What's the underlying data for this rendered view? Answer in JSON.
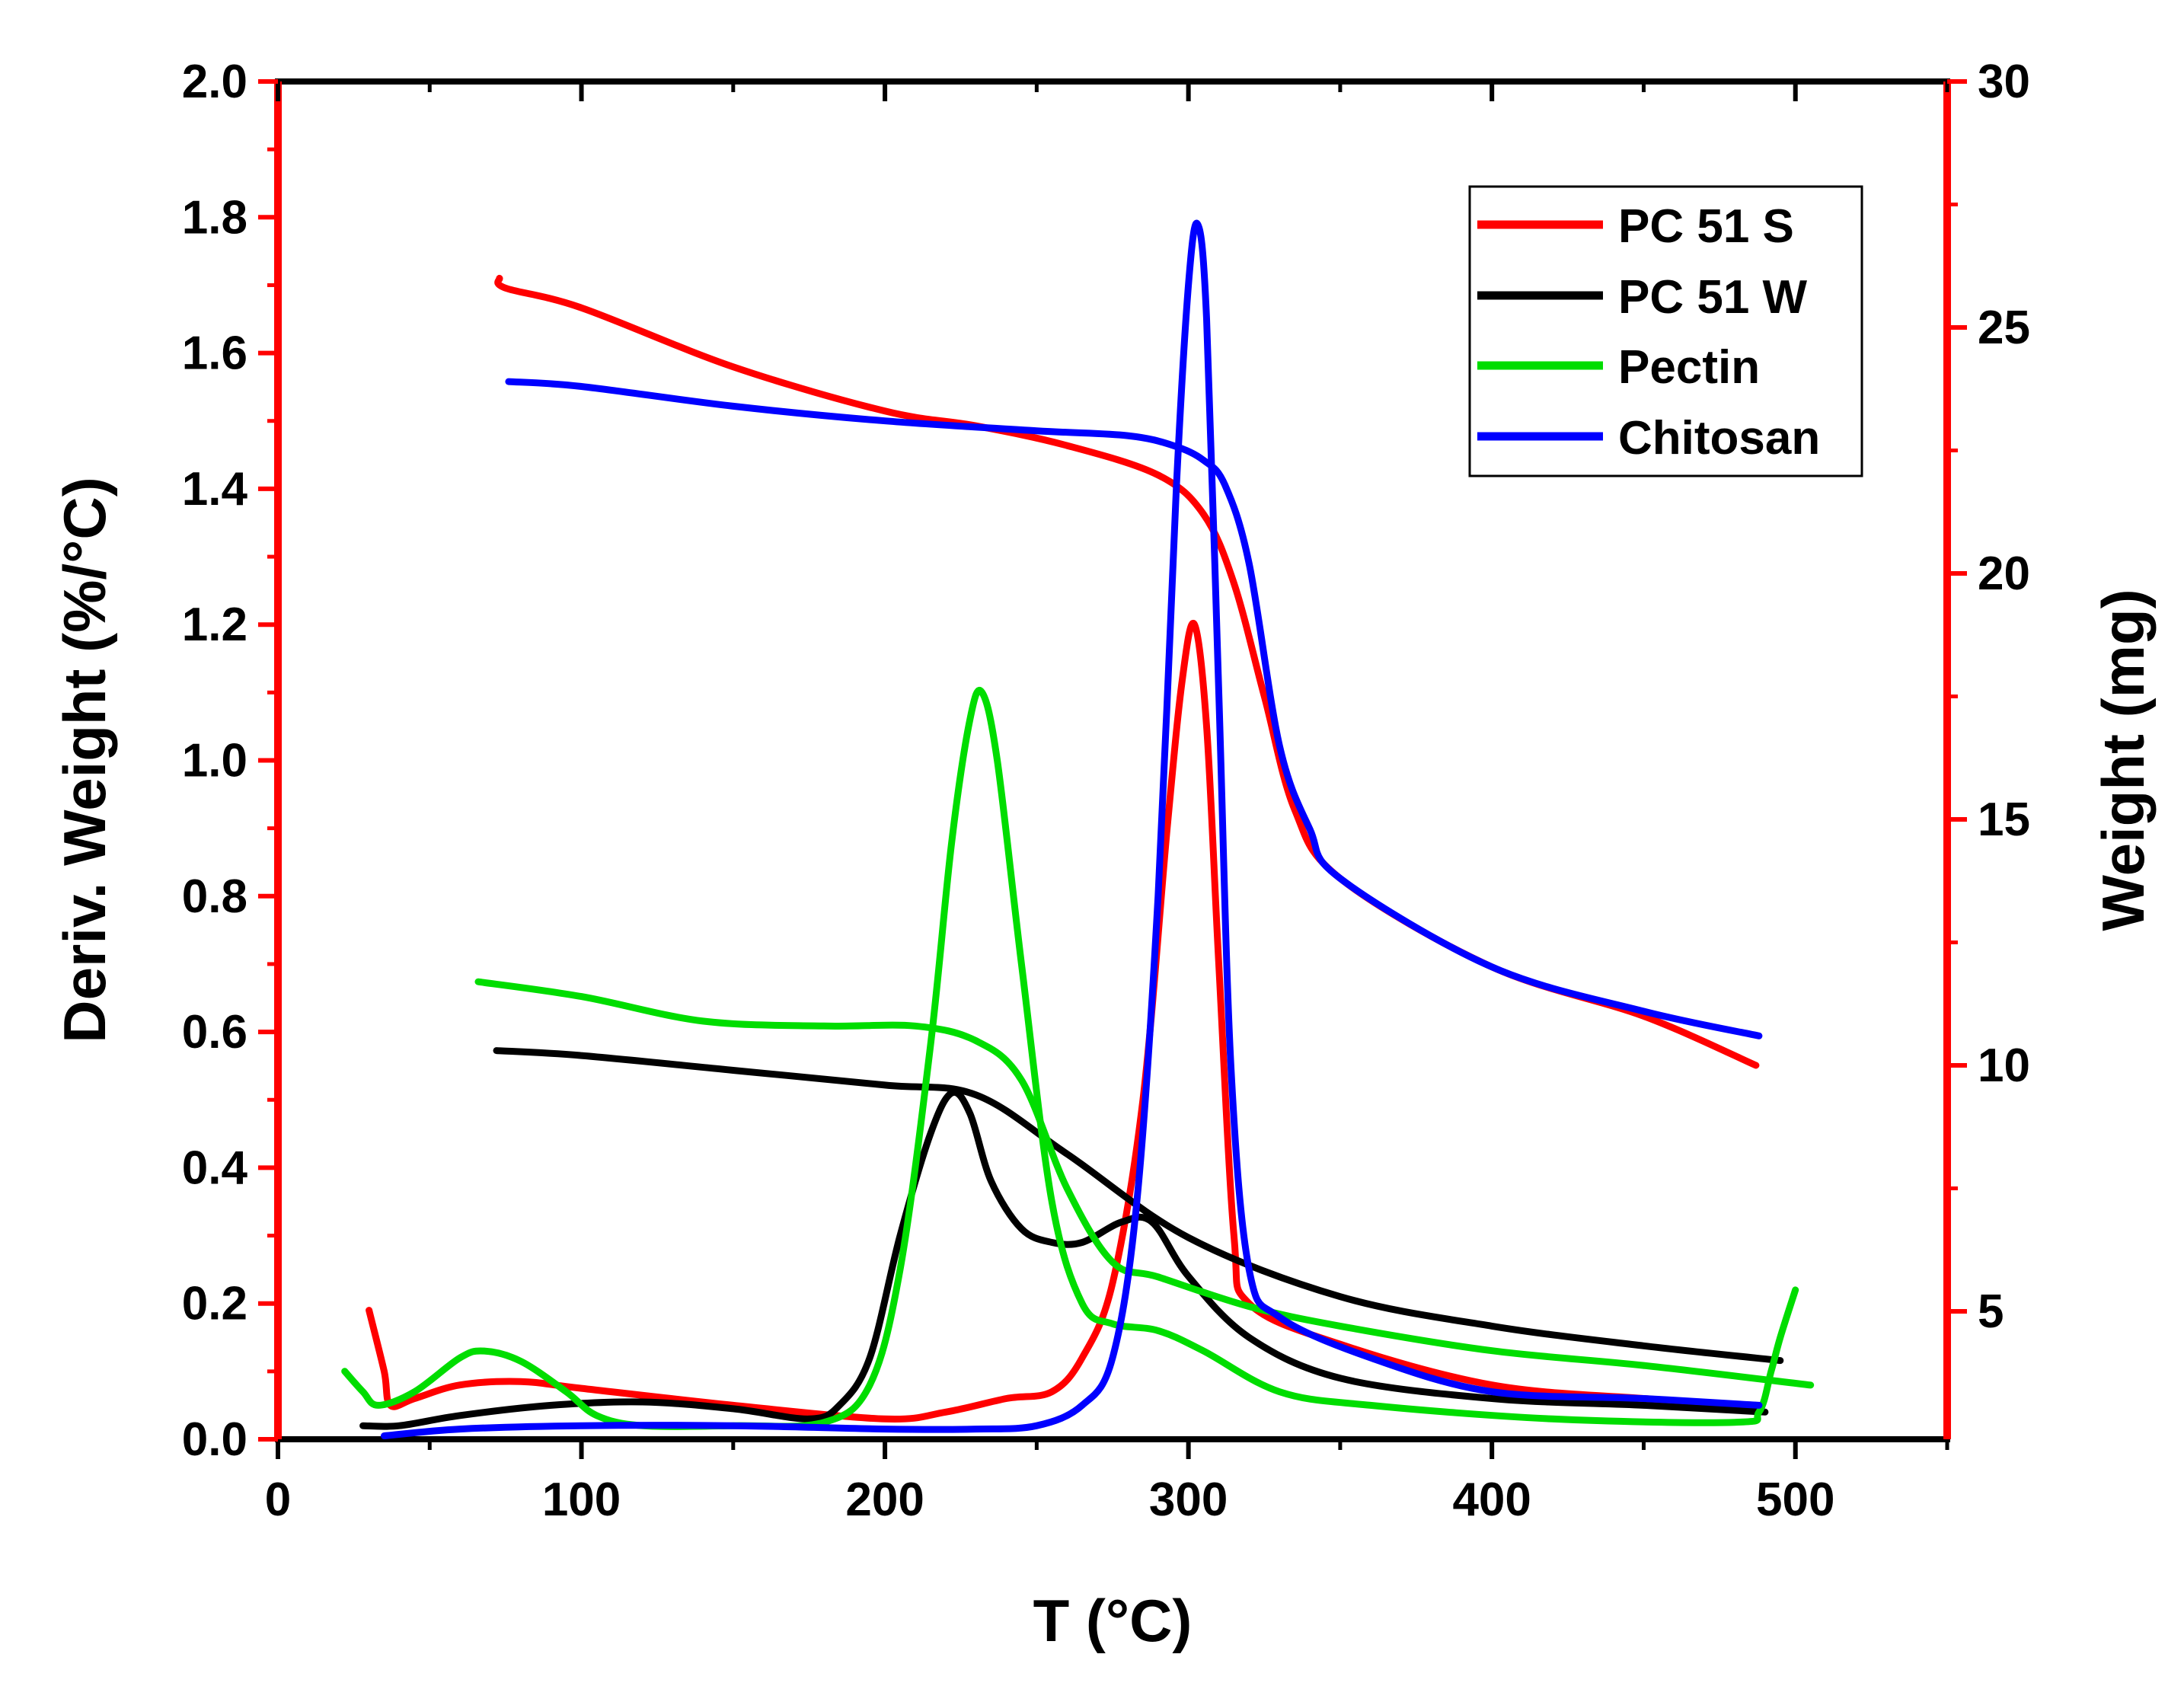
{
  "chart_data": {
    "type": "line",
    "title": "",
    "xlabel": "T (°C)",
    "ylabel_left": "Deriv. Weight (%/°C)",
    "ylabel_right": "Weight (mg)",
    "xlim": [
      0,
      550
    ],
    "ylim_left": [
      0,
      2.0
    ],
    "ylim_right": [
      2.4,
      30
    ],
    "x_ticks": [
      0,
      100,
      200,
      300,
      400,
      500
    ],
    "y_left_ticks": [
      "0.0",
      "0.2",
      "0.4",
      "0.6",
      "0.8",
      "1.0",
      "1.2",
      "1.4",
      "1.6",
      "1.8",
      "2.0"
    ],
    "y_right_ticks": [
      5,
      10,
      15,
      20,
      25,
      30
    ],
    "grid": false,
    "legend_position": "top-right",
    "series": [
      {
        "name": "PC 51 S",
        "color": "#ff0000",
        "weight_mg": [
          [
            73,
            26.0
          ],
          [
            75,
            25.8
          ],
          [
            100,
            25.4
          ],
          [
            150,
            24.2
          ],
          [
            200,
            23.3
          ],
          [
            230,
            23.0
          ],
          [
            260,
            22.6
          ],
          [
            290,
            22.0
          ],
          [
            305,
            21.2
          ],
          [
            315,
            19.8
          ],
          [
            325,
            17.5
          ],
          [
            335,
            15.2
          ],
          [
            350,
            13.8
          ],
          [
            400,
            12.0
          ],
          [
            450,
            11.0
          ],
          [
            487,
            10.0
          ]
        ],
        "deriv_pct_per_C": [
          [
            30,
            0.19
          ],
          [
            35,
            0.1
          ],
          [
            37,
            0.05
          ],
          [
            45,
            0.06
          ],
          [
            60,
            0.08
          ],
          [
            80,
            0.085
          ],
          [
            100,
            0.075
          ],
          [
            150,
            0.05
          ],
          [
            200,
            0.03
          ],
          [
            220,
            0.04
          ],
          [
            240,
            0.06
          ],
          [
            255,
            0.07
          ],
          [
            265,
            0.12
          ],
          [
            275,
            0.23
          ],
          [
            285,
            0.5
          ],
          [
            293,
            0.9
          ],
          [
            298,
            1.12
          ],
          [
            302,
            1.2
          ],
          [
            306,
            1.05
          ],
          [
            310,
            0.7
          ],
          [
            315,
            0.3
          ],
          [
            320,
            0.2
          ],
          [
            350,
            0.14
          ],
          [
            400,
            0.08
          ],
          [
            450,
            0.06
          ],
          [
            487,
            0.05
          ]
        ]
      },
      {
        "name": "PC 51 W",
        "color": "#000000",
        "weight_mg": [
          [
            72,
            10.3
          ],
          [
            100,
            10.2
          ],
          [
            150,
            9.9
          ],
          [
            200,
            9.6
          ],
          [
            230,
            9.4
          ],
          [
            260,
            8.2
          ],
          [
            300,
            6.5
          ],
          [
            350,
            5.3
          ],
          [
            400,
            4.7
          ],
          [
            450,
            4.3
          ],
          [
            495,
            4.0
          ]
        ],
        "deriv_pct_per_C": [
          [
            28,
            0.02
          ],
          [
            40,
            0.02
          ],
          [
            60,
            0.035
          ],
          [
            90,
            0.05
          ],
          [
            120,
            0.055
          ],
          [
            150,
            0.045
          ],
          [
            175,
            0.03
          ],
          [
            185,
            0.05
          ],
          [
            195,
            0.12
          ],
          [
            205,
            0.3
          ],
          [
            215,
            0.45
          ],
          [
            222,
            0.51
          ],
          [
            228,
            0.48
          ],
          [
            235,
            0.38
          ],
          [
            245,
            0.31
          ],
          [
            255,
            0.29
          ],
          [
            265,
            0.29
          ],
          [
            278,
            0.32
          ],
          [
            288,
            0.32
          ],
          [
            300,
            0.24
          ],
          [
            320,
            0.15
          ],
          [
            350,
            0.09
          ],
          [
            400,
            0.06
          ],
          [
            450,
            0.05
          ],
          [
            490,
            0.04
          ]
        ]
      },
      {
        "name": "Pectin",
        "color": "#00dd00",
        "weight_mg": [
          [
            66,
            11.7
          ],
          [
            100,
            11.4
          ],
          [
            140,
            10.9
          ],
          [
            180,
            10.8
          ],
          [
            210,
            10.8
          ],
          [
            230,
            10.5
          ],
          [
            245,
            9.7
          ],
          [
            260,
            7.5
          ],
          [
            275,
            6.0
          ],
          [
            290,
            5.7
          ],
          [
            320,
            5.1
          ],
          [
            350,
            4.7
          ],
          [
            400,
            4.2
          ],
          [
            450,
            3.9
          ],
          [
            505,
            3.5
          ]
        ],
        "deriv_pct_per_C": [
          [
            22,
            0.1
          ],
          [
            28,
            0.07
          ],
          [
            33,
            0.05
          ],
          [
            45,
            0.07
          ],
          [
            60,
            0.12
          ],
          [
            68,
            0.13
          ],
          [
            80,
            0.115
          ],
          [
            95,
            0.07
          ],
          [
            105,
            0.035
          ],
          [
            120,
            0.02
          ],
          [
            150,
            0.02
          ],
          [
            180,
            0.025
          ],
          [
            195,
            0.08
          ],
          [
            205,
            0.25
          ],
          [
            215,
            0.58
          ],
          [
            222,
            0.88
          ],
          [
            228,
            1.06
          ],
          [
            232,
            1.1
          ],
          [
            237,
            1.0
          ],
          [
            245,
            0.7
          ],
          [
            255,
            0.35
          ],
          [
            265,
            0.2
          ],
          [
            275,
            0.17
          ],
          [
            290,
            0.16
          ],
          [
            305,
            0.13
          ],
          [
            330,
            0.07
          ],
          [
            360,
            0.05
          ],
          [
            420,
            0.03
          ],
          [
            480,
            0.025
          ],
          [
            488,
            0.04
          ],
          [
            492,
            0.1
          ],
          [
            495,
            0.15
          ],
          [
            500,
            0.22
          ]
        ]
      },
      {
        "name": "Chitosan",
        "color": "#0000ff",
        "weight_mg": [
          [
            76,
            23.9
          ],
          [
            100,
            23.8
          ],
          [
            150,
            23.4
          ],
          [
            200,
            23.1
          ],
          [
            250,
            22.9
          ],
          [
            280,
            22.8
          ],
          [
            295,
            22.6
          ],
          [
            305,
            22.3
          ],
          [
            312,
            21.8
          ],
          [
            320,
            20.2
          ],
          [
            330,
            16.5
          ],
          [
            340,
            14.8
          ],
          [
            350,
            13.8
          ],
          [
            400,
            12.0
          ],
          [
            450,
            11.1
          ],
          [
            488,
            10.6
          ]
        ],
        "deriv_pct_per_C": [
          [
            35,
            0.005
          ],
          [
            60,
            0.015
          ],
          [
            100,
            0.02
          ],
          [
            150,
            0.02
          ],
          [
            200,
            0.015
          ],
          [
            230,
            0.015
          ],
          [
            250,
            0.02
          ],
          [
            265,
            0.05
          ],
          [
            275,
            0.12
          ],
          [
            283,
            0.35
          ],
          [
            290,
            0.8
          ],
          [
            296,
            1.4
          ],
          [
            300,
            1.7
          ],
          [
            303,
            1.79
          ],
          [
            306,
            1.65
          ],
          [
            310,
            1.1
          ],
          [
            314,
            0.55
          ],
          [
            320,
            0.25
          ],
          [
            330,
            0.18
          ],
          [
            360,
            0.12
          ],
          [
            400,
            0.07
          ],
          [
            450,
            0.06
          ],
          [
            488,
            0.05
          ]
        ]
      }
    ]
  },
  "legend": {
    "items": [
      "PC 51 S",
      "PC 51 W",
      "Pectin",
      "Chitosan"
    ]
  }
}
